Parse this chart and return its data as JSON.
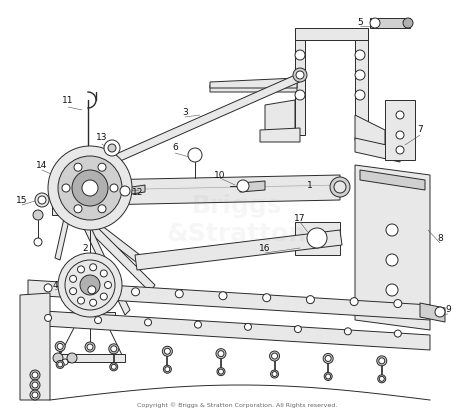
{
  "background_color": "#ffffff",
  "copyright_text": "Copyright © Briggs & Stratton Corporation. All Rights reserved.",
  "copyright_fontsize": 4.5,
  "copyright_color": "#666666",
  "watermark_lines": [
    "Briggs",
    "&Stratton"
  ],
  "watermark_alpha": 0.07,
  "line_color": "#2a2a2a",
  "line_width": 0.7,
  "label_fontsize": 6.5,
  "label_color": "#111111",
  "fill_light": "#e8e8e8",
  "fill_mid": "#d0d0d0",
  "fill_dark": "#b0b0b0"
}
